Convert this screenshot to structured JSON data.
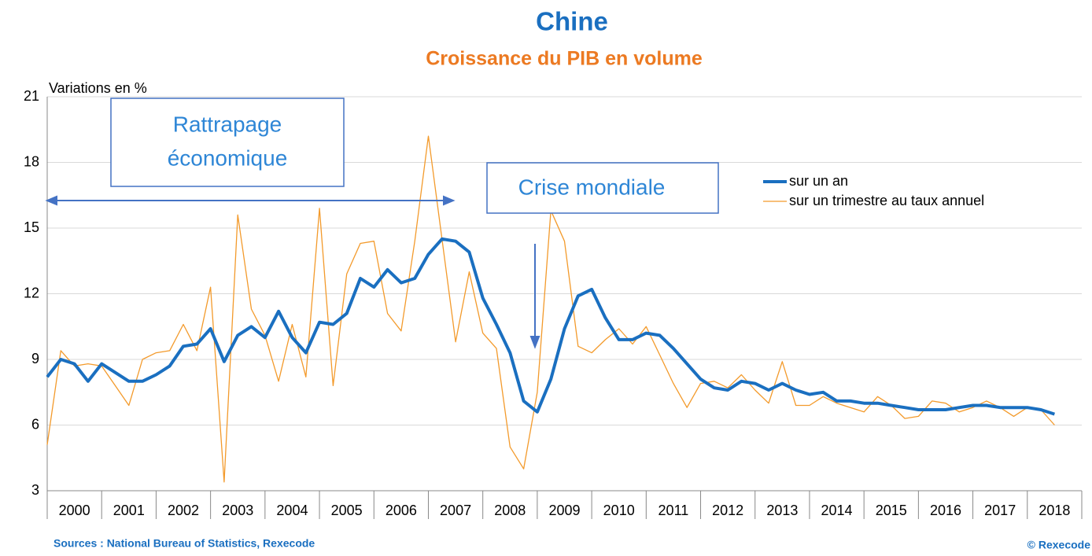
{
  "chart_data": {
    "type": "line",
    "title": "Chine",
    "subtitle": "Croissance du PIB en volume",
    "y_label": "Variations en %",
    "source": "Sources : National Bureau of Statistics, Rexecode",
    "copyright": "© Rexecode",
    "annotations": [
      {
        "lines": [
          "Rattrapage",
          "économique"
        ]
      },
      {
        "lines": [
          "Crise mondiale"
        ]
      }
    ],
    "categories": [
      "2000",
      null,
      null,
      null,
      "2001",
      null,
      null,
      null,
      "2002",
      null,
      null,
      null,
      "2003",
      null,
      null,
      null,
      "2004",
      null,
      null,
      null,
      "2005",
      null,
      null,
      null,
      "2006",
      null,
      null,
      null,
      "2007",
      null,
      null,
      null,
      "2008",
      null,
      null,
      null,
      "2009",
      null,
      null,
      null,
      "2010",
      null,
      null,
      null,
      "2011",
      null,
      null,
      null,
      "2012",
      null,
      null,
      null,
      "2013",
      null,
      null,
      null,
      "2014",
      null,
      null,
      null,
      "2015",
      null,
      null,
      null,
      "2016",
      null,
      null,
      null,
      "2017",
      null,
      null,
      null,
      "2018",
      null,
      null
    ],
    "series": [
      {
        "name": "sur un an",
        "color": "#1a6fc0",
        "width": 4,
        "values": [
          8.2,
          9.0,
          8.8,
          8.0,
          8.8,
          8.4,
          8.0,
          8.0,
          8.3,
          8.7,
          9.6,
          9.7,
          10.4,
          8.9,
          10.1,
          10.5,
          10.0,
          11.2,
          10.0,
          9.3,
          10.7,
          10.6,
          11.1,
          12.7,
          12.3,
          13.1,
          12.5,
          12.7,
          13.8,
          14.5,
          14.4,
          13.9,
          11.8,
          10.6,
          9.3,
          7.1,
          6.6,
          8.1,
          10.4,
          11.9,
          12.2,
          10.9,
          9.9,
          9.9,
          10.2,
          10.1,
          9.5,
          8.8,
          8.1,
          7.7,
          7.6,
          8.0,
          7.9,
          7.6,
          7.9,
          7.6,
          7.4,
          7.5,
          7.1,
          7.1,
          7.0,
          7.0,
          6.9,
          6.8,
          6.7,
          6.7,
          6.7,
          6.8,
          6.9,
          6.9,
          6.8,
          6.8,
          6.8,
          6.7,
          6.5
        ]
      },
      {
        "name": "sur un trimestre au taux annuel",
        "color": "#f39a2b",
        "width": 1.3,
        "values": [
          5.1,
          9.4,
          8.7,
          8.8,
          8.7,
          7.8,
          6.9,
          9.0,
          9.3,
          9.4,
          10.6,
          9.4,
          12.3,
          3.4,
          15.6,
          11.3,
          10.1,
          8.0,
          10.6,
          8.2,
          15.9,
          7.8,
          12.9,
          14.3,
          14.4,
          11.1,
          10.3,
          14.4,
          19.2,
          14.5,
          9.8,
          13.0,
          10.2,
          9.5,
          5.0,
          4.0,
          7.5,
          15.8,
          14.4,
          9.6,
          9.3,
          9.9,
          10.4,
          9.7,
          10.5,
          9.2,
          7.9,
          6.8,
          7.9,
          8.0,
          7.7,
          8.3,
          7.6,
          7.0,
          8.9,
          6.9,
          6.9,
          7.3,
          7.0,
          6.8,
          6.6,
          7.3,
          6.9,
          6.3,
          6.4,
          7.1,
          7.0,
          6.6,
          6.8,
          7.1,
          6.8,
          6.4,
          6.8,
          6.7,
          6.0
        ]
      }
    ],
    "ylim": [
      3,
      21
    ],
    "yticks": [
      3,
      6,
      9,
      12,
      15,
      18,
      21
    ],
    "grid": true,
    "legend": "upper right"
  }
}
